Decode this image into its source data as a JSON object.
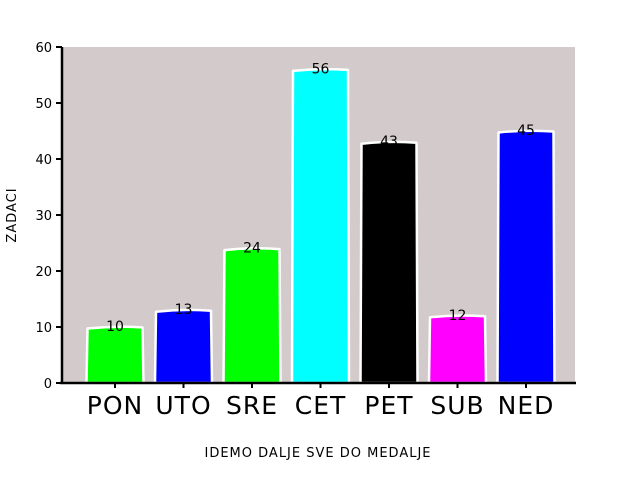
{
  "chart_data": {
    "type": "bar",
    "title": "",
    "xlabel": "IDEMO DALJE SVE DO MEDALJE",
    "ylabel": "ZADACI",
    "categories": [
      "PON",
      "UTO",
      "SRE",
      "CET",
      "PET",
      "SUB",
      "NED"
    ],
    "values": [
      10,
      13,
      24,
      56,
      43,
      12,
      45
    ],
    "colors": [
      "#00ff00",
      "#0000ff",
      "#00ff00",
      "#00ffff",
      "#000000",
      "#ff00ff",
      "#0000ff"
    ],
    "ylim": [
      0,
      60
    ],
    "yticks": [
      0,
      10,
      20,
      30,
      40,
      50,
      60
    ],
    "plot_background": "#d3cbcb",
    "grid": false,
    "legend": "none"
  }
}
